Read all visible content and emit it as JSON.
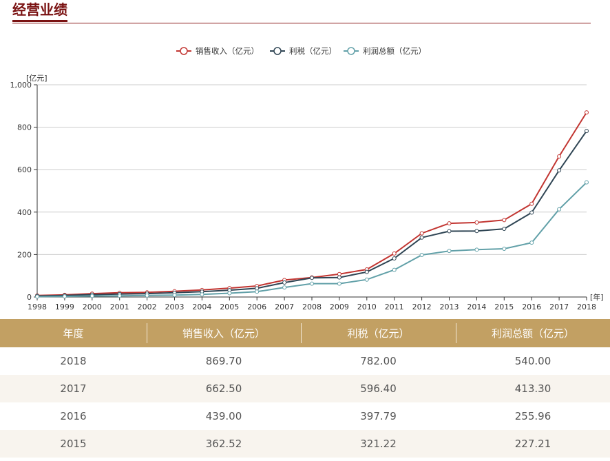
{
  "header": {
    "title": "经营业绩"
  },
  "chart_data": {
    "type": "line",
    "ylabel": "[亿元]",
    "xlabel": "[年]",
    "ylim": [
      0,
      1000
    ],
    "yticks": [
      "0",
      "200",
      "400",
      "600",
      "800",
      "1,000"
    ],
    "grid": true,
    "legend_position": "top-center",
    "x": [
      "1998",
      "1999",
      "2000",
      "2001",
      "2002",
      "2003",
      "2004",
      "2005",
      "2006",
      "2007",
      "2008",
      "2009",
      "2010",
      "2011",
      "2012",
      "2013",
      "2014",
      "2015",
      "2016",
      "2017",
      "2018"
    ],
    "series": [
      {
        "name": "销售收入（亿元）",
        "color": "#c23531",
        "values": [
          7,
          10,
          16,
          20,
          22,
          27,
          33,
          42,
          52,
          80,
          92,
          108,
          130,
          205,
          300,
          347,
          351,
          362.52,
          439,
          662.5,
          869.7
        ]
      },
      {
        "name": "利税（亿元）",
        "color": "#2f4554",
        "values": [
          5,
          7,
          11,
          14,
          16,
          20,
          25,
          32,
          41,
          68,
          90,
          92,
          118,
          182,
          280,
          310,
          311,
          321.22,
          397.79,
          596.4,
          782
        ]
      },
      {
        "name": "利润总额（亿元）",
        "color": "#61a0a8",
        "values": [
          2,
          3,
          5,
          6,
          7,
          9,
          12,
          18,
          25,
          45,
          63,
          63,
          82,
          128,
          198,
          217,
          223,
          227.21,
          255.96,
          413.3,
          540
        ]
      }
    ]
  },
  "table": {
    "headers": [
      "年度",
      "销售收入（亿元）",
      "利税（亿元）",
      "利润总额（亿元）"
    ],
    "rows": [
      [
        "2018",
        "869.70",
        "782.00",
        "540.00"
      ],
      [
        "2017",
        "662.50",
        "596.40",
        "413.30"
      ],
      [
        "2016",
        "439.00",
        "397.79",
        "255.96"
      ],
      [
        "2015",
        "362.52",
        "321.22",
        "227.21"
      ]
    ]
  }
}
